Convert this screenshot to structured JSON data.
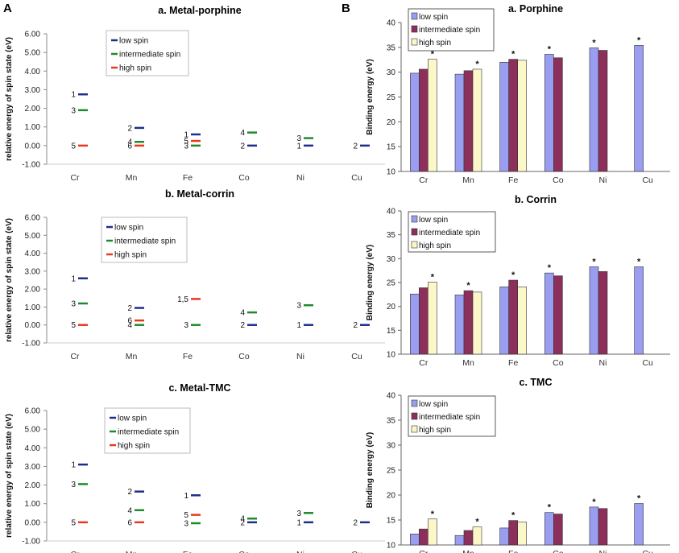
{
  "panels": [
    {
      "letter": "A"
    },
    {
      "letter": "B"
    }
  ],
  "colors": {
    "low": "#1f2d8a",
    "intermediate": "#1f8a2d",
    "high": "#e8391f",
    "bar_low": "#9a9ef0",
    "bar_intermediate": "#8c2f5a",
    "bar_high": "#fbf7c8",
    "bar_stroke": "#333333"
  },
  "chart_data": [
    {
      "type": "scatter",
      "title": "a. Metal-porphine",
      "ylabel": "relative energy of spin state (eV)",
      "ylim": [
        -1,
        6
      ],
      "yticks": [
        "-1.00",
        "0.00",
        "1.00",
        "2.00",
        "3.00",
        "4.00",
        "5.00",
        "6.00"
      ],
      "categories": [
        "Cr",
        "Mn",
        "Fe",
        "Co",
        "Ni",
        "Cu"
      ],
      "legend": [
        "low spin",
        "intermediate spin",
        "high spin"
      ],
      "levels": [
        {
          "metal": "Cr",
          "spin": "low",
          "label": "1",
          "value": 2.75
        },
        {
          "metal": "Cr",
          "spin": "intermediate",
          "label": "3",
          "value": 1.9
        },
        {
          "metal": "Cr",
          "spin": "high",
          "label": "5",
          "value": 0
        },
        {
          "metal": "Mn",
          "spin": "low",
          "label": "2",
          "value": 0.95
        },
        {
          "metal": "Mn",
          "spin": "intermediate",
          "label": "4",
          "value": 0.2
        },
        {
          "metal": "Mn",
          "spin": "high",
          "label": "6",
          "value": 0
        },
        {
          "metal": "Fe",
          "spin": "low",
          "label": "1",
          "value": 0.6
        },
        {
          "metal": "Fe",
          "spin": "high",
          "label": "5",
          "value": 0.25
        },
        {
          "metal": "Fe",
          "spin": "intermediate",
          "label": "3",
          "value": 0
        },
        {
          "metal": "Co",
          "spin": "intermediate",
          "label": "4",
          "value": 0.7
        },
        {
          "metal": "Co",
          "spin": "low",
          "label": "2",
          "value": 0
        },
        {
          "metal": "Ni",
          "spin": "intermediate",
          "label": "3",
          "value": 0.4
        },
        {
          "metal": "Ni",
          "spin": "low",
          "label": "1",
          "value": 0
        },
        {
          "metal": "Cu",
          "spin": "low",
          "label": "2",
          "value": 0
        }
      ]
    },
    {
      "type": "scatter",
      "title": "b. Metal-corrin",
      "ylabel": "relative energy of spin state (eV)",
      "ylim": [
        -1,
        6
      ],
      "yticks": [
        "-1.00",
        "0.00",
        "1.00",
        "2.00",
        "3.00",
        "4.00",
        "5.00",
        "6.00"
      ],
      "categories": [
        "Cr",
        "Mn",
        "Fe",
        "Co",
        "Ni",
        "Cu"
      ],
      "legend": [
        "low spin",
        "intermediate spin",
        "high spin"
      ],
      "levels": [
        {
          "metal": "Cr",
          "spin": "low",
          "label": "1",
          "value": 2.6
        },
        {
          "metal": "Cr",
          "spin": "intermediate",
          "label": "3",
          "value": 1.2
        },
        {
          "metal": "Cr",
          "spin": "high",
          "label": "5",
          "value": 0
        },
        {
          "metal": "Mn",
          "spin": "low",
          "label": "2",
          "value": 0.95
        },
        {
          "metal": "Mn",
          "spin": "high",
          "label": "6",
          "value": 0.25
        },
        {
          "metal": "Mn",
          "spin": "intermediate",
          "label": "4",
          "value": 0
        },
        {
          "metal": "Fe",
          "spin": "high",
          "label": "1,5",
          "value": 1.45
        },
        {
          "metal": "Fe",
          "spin": "intermediate",
          "label": "3",
          "value": 0
        },
        {
          "metal": "Co",
          "spin": "intermediate",
          "label": "4",
          "value": 0.7
        },
        {
          "metal": "Co",
          "spin": "low",
          "label": "2",
          "value": 0
        },
        {
          "metal": "Ni",
          "spin": "intermediate",
          "label": "3",
          "value": 1.1
        },
        {
          "metal": "Ni",
          "spin": "low",
          "label": "1",
          "value": 0
        },
        {
          "metal": "Cu",
          "spin": "low",
          "label": "2",
          "value": 0
        }
      ]
    },
    {
      "type": "scatter",
      "title": "c. Metal-TMC",
      "ylabel": "relative energy of spin state (eV)",
      "ylim": [
        -1,
        6
      ],
      "yticks": [
        "-1.00",
        "0.00",
        "1.00",
        "2.00",
        "3.00",
        "4.00",
        "5.00",
        "6.00"
      ],
      "categories": [
        "Cr",
        "Mn",
        "Fe",
        "Co",
        "Ni",
        "Cu"
      ],
      "legend": [
        "low spin",
        "intermediate spin",
        "high spin"
      ],
      "levels": [
        {
          "metal": "Cr",
          "spin": "low",
          "label": "1",
          "value": 3.1
        },
        {
          "metal": "Cr",
          "spin": "intermediate",
          "label": "3",
          "value": 2.05
        },
        {
          "metal": "Cr",
          "spin": "high",
          "label": "5",
          "value": 0
        },
        {
          "metal": "Mn",
          "spin": "low",
          "label": "2",
          "value": 1.65
        },
        {
          "metal": "Mn",
          "spin": "intermediate",
          "label": "4",
          "value": 0.65
        },
        {
          "metal": "Mn",
          "spin": "high",
          "label": "6",
          "value": 0
        },
        {
          "metal": "Fe",
          "spin": "low",
          "label": "1",
          "value": 1.45
        },
        {
          "metal": "Fe",
          "spin": "high",
          "label": "5",
          "value": 0.4
        },
        {
          "metal": "Fe",
          "spin": "intermediate",
          "label": "3",
          "value": -0.05
        },
        {
          "metal": "Co",
          "spin": "intermediate",
          "label": "4",
          "value": 0.2
        },
        {
          "metal": "Co",
          "spin": "low",
          "label": "2",
          "value": 0
        },
        {
          "metal": "Ni",
          "spin": "intermediate",
          "label": "3",
          "value": 0.5
        },
        {
          "metal": "Ni",
          "spin": "low",
          "label": "1",
          "value": 0
        },
        {
          "metal": "Cu",
          "spin": "low",
          "label": "2",
          "value": 0
        }
      ]
    },
    {
      "type": "bar",
      "title": "a. Porphine",
      "ylabel": "Binding energy (eV)",
      "ylim": [
        10,
        40
      ],
      "yticks": [
        "10",
        "15",
        "20",
        "25",
        "30",
        "35",
        "40"
      ],
      "categories": [
        "Cr",
        "Mn",
        "Fe",
        "Co",
        "Ni",
        "Cu"
      ],
      "legend": [
        "low spin",
        "intermediate spin",
        "high spin"
      ],
      "series": [
        {
          "name": "low spin",
          "values": [
            29.8,
            29.6,
            32.0,
            33.6,
            34.9,
            35.4
          ]
        },
        {
          "name": "intermediate spin",
          "values": [
            30.6,
            30.3,
            32.6,
            32.9,
            34.4,
            null
          ]
        },
        {
          "name": "high spin",
          "values": [
            32.6,
            30.6,
            32.4,
            null,
            null,
            null
          ]
        }
      ],
      "stars": [
        {
          "category": "Cr",
          "series": 2,
          "label": "*"
        },
        {
          "category": "Mn",
          "series": 2,
          "label": "*"
        },
        {
          "category": "Fe",
          "series": 1,
          "label": "*"
        },
        {
          "category": "Co",
          "series": 0,
          "label": "*"
        },
        {
          "category": "Ni",
          "series": 0,
          "label": "*"
        },
        {
          "category": "Cu",
          "series": 0,
          "label": "*"
        }
      ]
    },
    {
      "type": "bar",
      "title": "b. Corrin",
      "ylabel": "Binding energy (eV)",
      "ylim": [
        10,
        40
      ],
      "yticks": [
        "10",
        "15",
        "20",
        "25",
        "30",
        "35",
        "40"
      ],
      "categories": [
        "Cr",
        "Mn",
        "Fe",
        "Co",
        "Ni",
        "Cu"
      ],
      "legend": [
        "low spin",
        "intermediate spin",
        "high spin"
      ],
      "series": [
        {
          "name": "low spin",
          "values": [
            22.6,
            22.4,
            24.1,
            27.0,
            28.3,
            28.3
          ]
        },
        {
          "name": "intermediate spin",
          "values": [
            23.9,
            23.3,
            25.5,
            26.4,
            27.3,
            null
          ]
        },
        {
          "name": "high spin",
          "values": [
            25.1,
            23.0,
            24.1,
            null,
            null,
            null
          ]
        }
      ],
      "stars": [
        {
          "category": "Cr",
          "series": 2,
          "label": "*"
        },
        {
          "category": "Mn",
          "series": 1,
          "label": "*"
        },
        {
          "category": "Fe",
          "series": 1,
          "label": "*"
        },
        {
          "category": "Co",
          "series": 0,
          "label": "*"
        },
        {
          "category": "Ni",
          "series": 0,
          "label": "*"
        },
        {
          "category": "Cu",
          "series": 0,
          "label": "*"
        }
      ]
    },
    {
      "type": "bar",
      "title": "c. TMC",
      "ylabel": "Binding energy (eV)",
      "ylim": [
        10,
        40
      ],
      "yticks": [
        "10",
        "15",
        "20",
        "25",
        "30",
        "35",
        "40"
      ],
      "categories": [
        "Cr",
        "Mn",
        "Fe",
        "Co",
        "Ni",
        "Cu"
      ],
      "legend": [
        "low spin",
        "intermediate spin",
        "high spin"
      ],
      "series": [
        {
          "name": "low spin",
          "values": [
            12.2,
            11.9,
            13.4,
            16.5,
            17.6,
            18.3
          ]
        },
        {
          "name": "intermediate spin",
          "values": [
            13.2,
            12.9,
            14.9,
            16.2,
            17.3,
            null
          ]
        },
        {
          "name": "high spin",
          "values": [
            15.2,
            13.6,
            14.6,
            null,
            null,
            null
          ]
        }
      ],
      "stars": [
        {
          "category": "Cr",
          "series": 2,
          "label": "*"
        },
        {
          "category": "Mn",
          "series": 2,
          "label": "*"
        },
        {
          "category": "Fe",
          "series": 1,
          "label": "*"
        },
        {
          "category": "Co",
          "series": 0,
          "label": "*"
        },
        {
          "category": "Ni",
          "series": 0,
          "label": "*"
        },
        {
          "category": "Cu",
          "series": 0,
          "label": "*"
        }
      ]
    }
  ]
}
